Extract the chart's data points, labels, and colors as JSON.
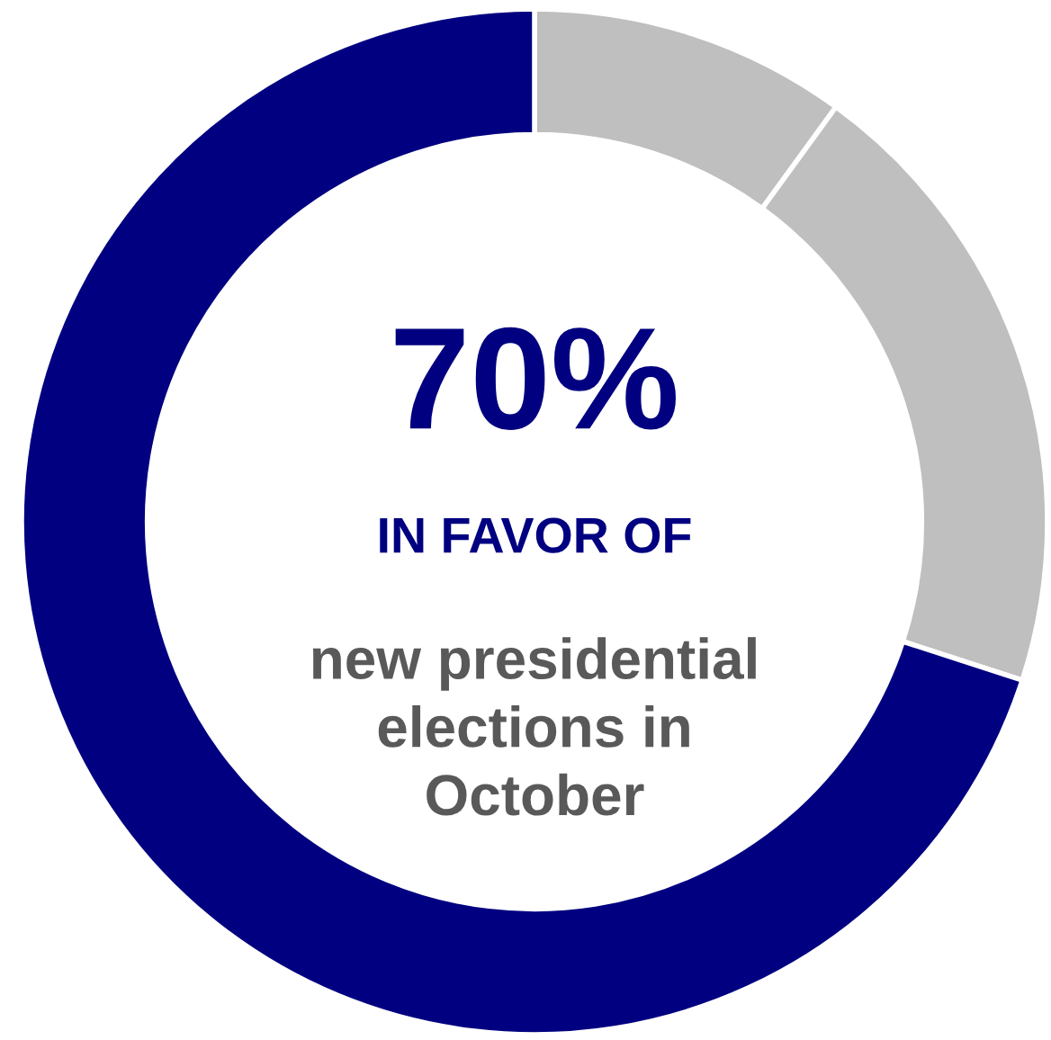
{
  "chart_data": {
    "type": "donut",
    "categories": [
      null,
      null,
      null
    ],
    "values": [
      10,
      20,
      70
    ],
    "colors": [
      "#bfbfbf",
      "#bfbfbf",
      "#000080"
    ],
    "value_labels": [
      null,
      null,
      "70%"
    ],
    "annotations": [
      "IN FAVOR OF",
      "new presidential\nelections in\nOctober"
    ]
  }
}
